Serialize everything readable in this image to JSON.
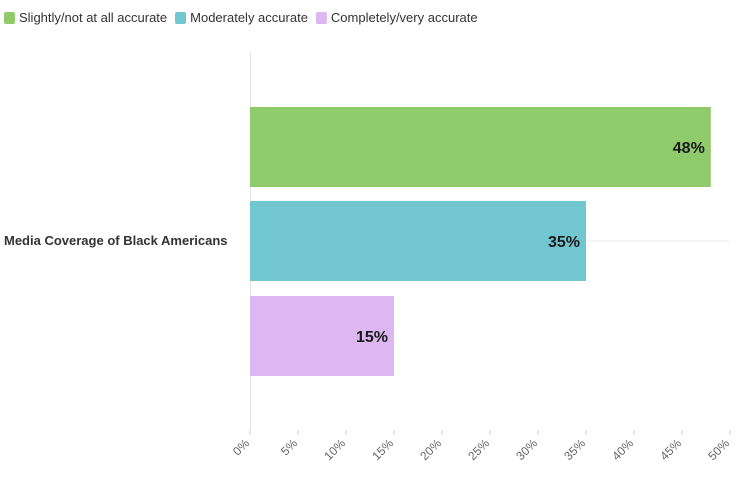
{
  "chart_data": {
    "type": "bar",
    "orientation": "horizontal",
    "categories": [
      "Media Coverage of Black Americans"
    ],
    "series": [
      {
        "name": "Slightly/not at all accurate",
        "values": [
          48
        ],
        "color": "#8fca6b"
      },
      {
        "name": "Moderately accurate",
        "values": [
          35
        ],
        "color": "#72c6cf"
      },
      {
        "name": "Completely/very accurate",
        "values": [
          15
        ],
        "color": "#ddb7f1"
      }
    ],
    "data_labels": [
      "48%",
      "35%",
      "15%"
    ],
    "xlim": [
      0,
      50
    ],
    "x_ticks": [
      "0%",
      "5%",
      "10%",
      "15%",
      "20%",
      "25%",
      "30%",
      "35%",
      "40%",
      "45%",
      "50%"
    ],
    "legend_position": "top-left",
    "grid": false
  }
}
